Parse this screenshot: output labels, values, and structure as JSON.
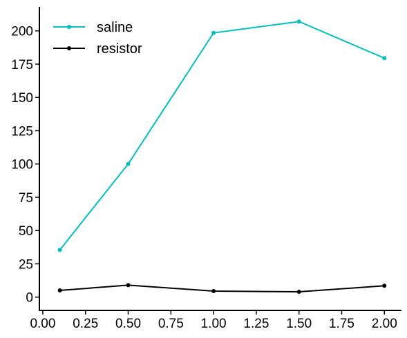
{
  "chart_data": {
    "type": "line",
    "title": "",
    "xlabel": "",
    "ylabel": "",
    "xlim": [
      -0.02,
      2.1
    ],
    "ylim": [
      -10,
      218
    ],
    "x_ticks": [
      0.0,
      0.25,
      0.5,
      0.75,
      1.0,
      1.25,
      1.5,
      1.75,
      2.0
    ],
    "x_tick_labels": [
      "0.00",
      "0.25",
      "0.50",
      "0.75",
      "1.00",
      "1.25",
      "1.50",
      "1.75",
      "2.00"
    ],
    "y_ticks": [
      0,
      25,
      50,
      75,
      100,
      125,
      150,
      175,
      200
    ],
    "y_tick_labels": [
      "0",
      "25",
      "50",
      "75",
      "100",
      "125",
      "150",
      "175",
      "200"
    ],
    "grid": false,
    "legend_position": "top-left",
    "x": [
      0.1,
      0.5,
      1.0,
      1.5,
      2.0
    ],
    "series": [
      {
        "name": "saline",
        "color": "#00bfbf",
        "values": [
          35.5,
          100,
          198.5,
          207,
          179.5
        ]
      },
      {
        "name": "resistor",
        "color": "#000000",
        "values": [
          5,
          9,
          4.5,
          4,
          8.5
        ]
      }
    ]
  }
}
